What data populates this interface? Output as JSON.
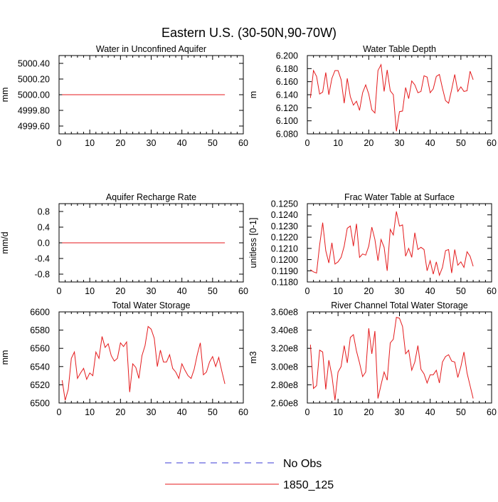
{
  "figure": {
    "title": "Eastern U.S. (30-50N,90-70W)"
  },
  "legend": {
    "entries": [
      {
        "label": "No Obs",
        "color": "#3b3bd6",
        "style": "dashed"
      },
      {
        "label": "1850_125",
        "color": "#e41a1c",
        "style": "solid"
      }
    ]
  },
  "chart_data": [
    {
      "type": "line",
      "title": "Water in Unconfined Aquifer",
      "xlabel": "",
      "ylabel": "mm",
      "xlim": [
        0,
        60
      ],
      "ylim": [
        4999.5,
        5000.5
      ],
      "xticks": [
        0,
        10,
        20,
        30,
        40,
        50,
        60
      ],
      "yticks": [
        4999.6,
        4999.8,
        5000.0,
        5000.2,
        5000.4
      ],
      "ytick_labels": [
        "4999.60",
        "4999.80",
        "5000.00",
        "5000.20",
        "5000.40"
      ],
      "grid": false,
      "series": [
        {
          "name": "1850_125",
          "color": "#e41a1c",
          "x": [
            1,
            54
          ],
          "y": [
            5000.0,
            5000.0
          ]
        }
      ]
    },
    {
      "type": "line",
      "title": "Water Table Depth",
      "xlabel": "",
      "ylabel": "m",
      "xlim": [
        0,
        60
      ],
      "ylim": [
        6.08,
        6.2
      ],
      "xticks": [
        0,
        10,
        20,
        30,
        40,
        50,
        60
      ],
      "yticks": [
        6.08,
        6.1,
        6.12,
        6.14,
        6.16,
        6.18,
        6.2
      ],
      "ytick_labels": [
        "6.080",
        "6.100",
        "6.120",
        "6.140",
        "6.160",
        "6.180",
        "6.200"
      ],
      "grid": false,
      "series": [
        {
          "name": "1850_125",
          "color": "#e41a1c",
          "x": [
            1,
            2,
            3,
            4,
            5,
            6,
            7,
            8,
            9,
            10,
            11,
            12,
            13,
            14,
            15,
            16,
            17,
            18,
            19,
            20,
            21,
            22,
            23,
            24,
            25,
            26,
            27,
            28,
            29,
            30,
            31,
            32,
            33,
            34,
            35,
            36,
            37,
            38,
            39,
            40,
            41,
            42,
            43,
            44,
            45,
            46,
            47,
            48,
            49,
            50,
            51,
            52,
            53,
            54
          ],
          "y": [
            6.135,
            6.177,
            6.168,
            6.141,
            6.144,
            6.174,
            6.14,
            6.165,
            6.177,
            6.177,
            6.163,
            6.127,
            6.165,
            6.137,
            6.124,
            6.13,
            6.116,
            6.143,
            6.155,
            6.141,
            6.117,
            6.112,
            6.177,
            6.186,
            6.145,
            6.178,
            6.146,
            6.14,
            6.084,
            6.114,
            6.115,
            6.151,
            6.134,
            6.161,
            6.155,
            6.143,
            6.145,
            6.169,
            6.167,
            6.143,
            6.149,
            6.168,
            6.171,
            6.15,
            6.131,
            6.127,
            6.148,
            6.171,
            6.145,
            6.152,
            6.145,
            6.146,
            6.176,
            6.163
          ]
        }
      ]
    },
    {
      "type": "line",
      "title": "Aquifer Recharge Rate",
      "xlabel": "",
      "ylabel": "mm/d",
      "xlim": [
        0,
        60
      ],
      "ylim": [
        -1.0,
        1.0
      ],
      "xticks": [
        0,
        10,
        20,
        30,
        40,
        50,
        60
      ],
      "yticks": [
        -0.8,
        -0.4,
        0.0,
        0.4,
        0.8
      ],
      "ytick_labels": [
        "-0.8",
        "-0.4",
        "0.0",
        "0.4",
        "0.8"
      ],
      "grid": false,
      "series": [
        {
          "name": "1850_125",
          "color": "#e41a1c",
          "x": [
            1,
            54
          ],
          "y": [
            0.0,
            0.0
          ]
        }
      ]
    },
    {
      "type": "line",
      "title": "Frac Water Table at Surface",
      "xlabel": "",
      "ylabel": "unitless [0-1]",
      "xlim": [
        0,
        60
      ],
      "ylim": [
        0.118,
        0.125
      ],
      "xticks": [
        0,
        10,
        20,
        30,
        40,
        50,
        60
      ],
      "yticks": [
        0.118,
        0.119,
        0.12,
        0.121,
        0.122,
        0.123,
        0.124,
        0.125
      ],
      "ytick_labels": [
        "0.1180",
        "0.1190",
        "0.1200",
        "0.1210",
        "0.1220",
        "0.1230",
        "0.1240",
        "0.1250"
      ],
      "grid": false,
      "series": [
        {
          "name": "1850_125",
          "color": "#e41a1c",
          "x": [
            1,
            2,
            3,
            4,
            5,
            6,
            7,
            8,
            9,
            10,
            11,
            12,
            13,
            14,
            15,
            16,
            17,
            18,
            19,
            20,
            21,
            22,
            23,
            24,
            25,
            26,
            27,
            28,
            29,
            30,
            31,
            32,
            33,
            34,
            35,
            36,
            37,
            38,
            39,
            40,
            41,
            42,
            43,
            44,
            45,
            46,
            47,
            48,
            49,
            50,
            51,
            52,
            53,
            54
          ],
          "y": [
            0.1191,
            0.1189,
            0.1188,
            0.1213,
            0.1233,
            0.1208,
            0.1197,
            0.1215,
            0.1196,
            0.1198,
            0.1202,
            0.1212,
            0.1228,
            0.123,
            0.1212,
            0.1232,
            0.1202,
            0.1205,
            0.1204,
            0.1212,
            0.1229,
            0.1218,
            0.1199,
            0.1218,
            0.1211,
            0.119,
            0.1227,
            0.1222,
            0.1243,
            0.123,
            0.1231,
            0.1203,
            0.121,
            0.1202,
            0.1224,
            0.1209,
            0.1211,
            0.1209,
            0.119,
            0.1199,
            0.1187,
            0.1198,
            0.1186,
            0.1193,
            0.1208,
            0.1209,
            0.1188,
            0.1209,
            0.1195,
            0.1198,
            0.1193,
            0.1207,
            0.1203,
            0.1194
          ]
        }
      ]
    },
    {
      "type": "line",
      "title": "Total Water Storage",
      "xlabel": "",
      "ylabel": "mm",
      "xlim": [
        0,
        60
      ],
      "ylim": [
        6500,
        6600
      ],
      "xticks": [
        0,
        10,
        20,
        30,
        40,
        50,
        60
      ],
      "yticks": [
        6500,
        6520,
        6540,
        6560,
        6580,
        6600
      ],
      "ytick_labels": [
        "6500",
        "6520",
        "6540",
        "6560",
        "6580",
        "6600"
      ],
      "grid": false,
      "series": [
        {
          "name": "1850_125",
          "color": "#e41a1c",
          "x": [
            1,
            2,
            3,
            4,
            5,
            6,
            7,
            8,
            9,
            10,
            11,
            12,
            13,
            14,
            15,
            16,
            17,
            18,
            19,
            20,
            21,
            22,
            23,
            24,
            25,
            26,
            27,
            28,
            29,
            30,
            31,
            32,
            33,
            34,
            35,
            36,
            37,
            38,
            39,
            40,
            41,
            42,
            43,
            44,
            45,
            46,
            47,
            48,
            49,
            50,
            51,
            52,
            53,
            54
          ],
          "y": [
            6525,
            6503,
            6515,
            6549,
            6556,
            6527,
            6533,
            6538,
            6526,
            6533,
            6530,
            6556,
            6549,
            6573,
            6561,
            6565,
            6552,
            6546,
            6549,
            6566,
            6562,
            6567,
            6512,
            6543,
            6539,
            6527,
            6552,
            6563,
            6584,
            6581,
            6571,
            6540,
            6558,
            6545,
            6545,
            6553,
            6538,
            6534,
            6527,
            6543,
            6536,
            6530,
            6527,
            6537,
            6553,
            6566,
            6531,
            6534,
            6545,
            6551,
            6540,
            6550,
            6535,
            6521
          ]
        }
      ]
    },
    {
      "type": "line",
      "title": "River Channel Total Water Storage",
      "xlabel": "",
      "ylabel": "m3",
      "xlim": [
        0,
        60
      ],
      "ylim": [
        260000000,
        360000000
      ],
      "xticks": [
        0,
        10,
        20,
        30,
        40,
        50,
        60
      ],
      "yticks": [
        260000000,
        280000000,
        300000000,
        320000000,
        340000000,
        360000000
      ],
      "ytick_labels": [
        "2.60e8",
        "2.80e8",
        "3.00e8",
        "3.20e8",
        "3.40e8",
        "3.60e8"
      ],
      "grid": false,
      "series": [
        {
          "name": "1850_125",
          "color": "#e41a1c",
          "x": [
            1,
            2,
            3,
            4,
            5,
            6,
            7,
            8,
            9,
            10,
            11,
            12,
            13,
            14,
            15,
            16,
            17,
            18,
            19,
            20,
            21,
            22,
            23,
            24,
            25,
            26,
            27,
            28,
            29,
            30,
            31,
            32,
            33,
            34,
            35,
            36,
            37,
            38,
            39,
            40,
            41,
            42,
            43,
            44,
            45,
            46,
            47,
            48,
            49,
            50,
            51,
            52,
            53,
            54
          ],
          "y": [
            324000000,
            276000000,
            279000000,
            318000000,
            316000000,
            275000000,
            307000000,
            290000000,
            263000000,
            294000000,
            300000000,
            323000000,
            304000000,
            332000000,
            335000000,
            317000000,
            304000000,
            289000000,
            294000000,
            342000000,
            314000000,
            339000000,
            265000000,
            280000000,
            294000000,
            285000000,
            326000000,
            330000000,
            354000000,
            353000000,
            344000000,
            314000000,
            318000000,
            296000000,
            305000000,
            323000000,
            297000000,
            292000000,
            282000000,
            291000000,
            291000000,
            296000000,
            282000000,
            305000000,
            311000000,
            313000000,
            306000000,
            305000000,
            288000000,
            300000000,
            316000000,
            293000000,
            279000000,
            265000000
          ]
        }
      ]
    }
  ]
}
